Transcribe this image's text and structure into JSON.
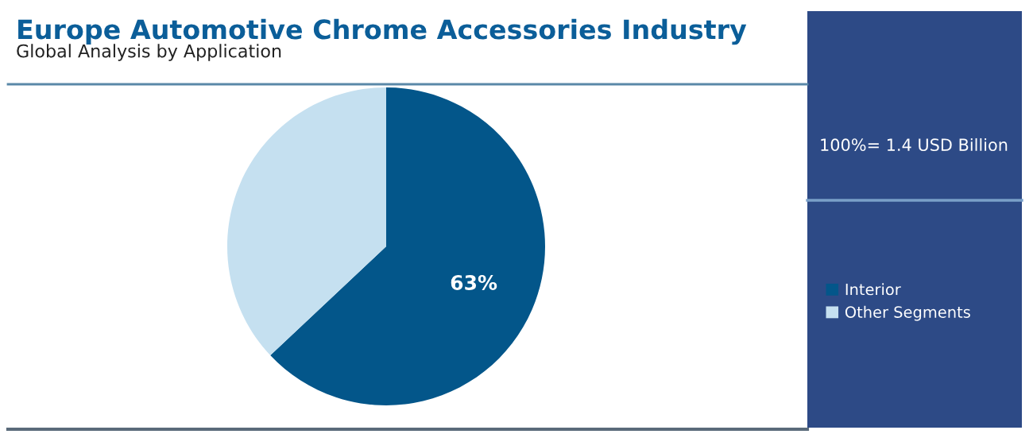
{
  "chart_data": {
    "type": "pie",
    "title": "Europe Automotive Chrome Accessories Industry",
    "subtitle": "Global Analysis by Application",
    "categories": [
      "Interior",
      "Other Segments"
    ],
    "values": [
      63,
      37
    ],
    "colors": [
      "#03568a",
      "#c5e0f0"
    ],
    "value_labels": [
      "63%",
      null
    ],
    "annotations": [
      "100%= 1.4 USD Billion"
    ],
    "legend": "right"
  }
}
